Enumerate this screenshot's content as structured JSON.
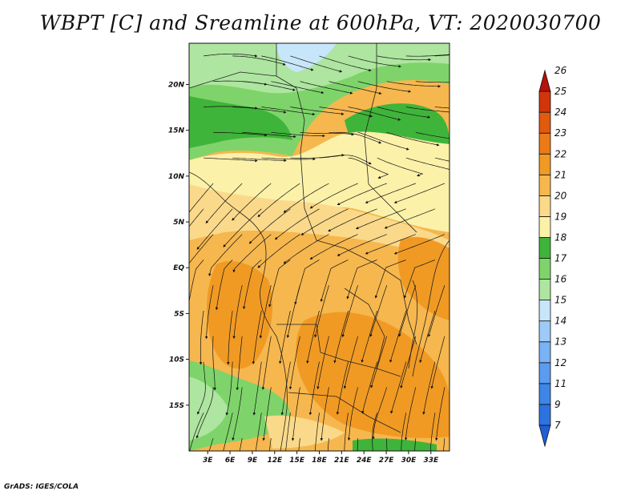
{
  "title": "WBPT [C] and Sreamline at 600hPa, VT: 2020030700",
  "credit": "GrADS: IGES/COLA",
  "map": {
    "lat_ticks": [
      {
        "label": "20N",
        "value": 20
      },
      {
        "label": "15N",
        "value": 15
      },
      {
        "label": "10N",
        "value": 10
      },
      {
        "label": "5N",
        "value": 5
      },
      {
        "label": "EQ",
        "value": 0
      },
      {
        "label": "5S",
        "value": -5
      },
      {
        "label": "10S",
        "value": -10
      },
      {
        "label": "15S",
        "value": -15
      }
    ],
    "lon_ticks": [
      {
        "label": "3E",
        "value": 3
      },
      {
        "label": "6E",
        "value": 6
      },
      {
        "label": "9E",
        "value": 9
      },
      {
        "label": "12E",
        "value": 12
      },
      {
        "label": "15E",
        "value": 15
      },
      {
        "label": "18E",
        "value": 18
      },
      {
        "label": "21E",
        "value": 21
      },
      {
        "label": "24E",
        "value": 24
      },
      {
        "label": "27E",
        "value": 27
      },
      {
        "label": "30E",
        "value": 30
      },
      {
        "label": "33E",
        "value": 33
      }
    ],
    "lon_range": [
      0.5,
      35.5
    ],
    "lat_range": [
      -20,
      24.5
    ]
  },
  "colorbar": {
    "levels": [
      "7",
      "9",
      "11",
      "12",
      "13",
      "14",
      "15",
      "16",
      "17",
      "18",
      "19",
      "20",
      "21",
      "22",
      "23",
      "24",
      "25",
      "26"
    ],
    "colors": [
      "#1f5fd6",
      "#2d72e0",
      "#3d86e8",
      "#5a9cf0",
      "#79b2f5",
      "#9ecaf7",
      "#c8e6fa",
      "#aee5a0",
      "#7ed46a",
      "#3fb43a",
      "#fbf1a8",
      "#fad98a",
      "#f6b74e",
      "#f09a24",
      "#ec7a16",
      "#e15a0e",
      "#d2350a",
      "#b4120a"
    ]
  }
}
